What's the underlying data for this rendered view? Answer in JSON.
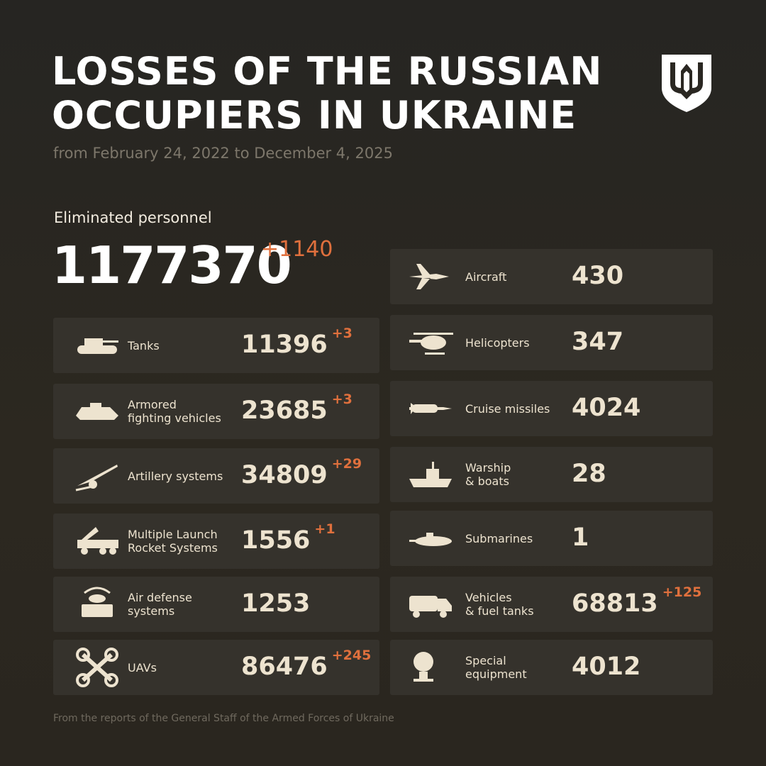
{
  "header": {
    "title_lines": [
      "LOSSES OF THE RUSSIAN",
      "OCCUPIERS IN UKRAINE"
    ],
    "subtitle": "from February 24, 2022 to December 4, 2025"
  },
  "personnel": {
    "label": "Eliminated personnel",
    "value": "1177370",
    "delta": "+1140"
  },
  "left_cards": [
    {
      "label": "Tanks",
      "value": "11396",
      "delta": "+3"
    },
    {
      "label": "Armored\nfighting vehicles",
      "value": "23685",
      "delta": "+3"
    },
    {
      "label": "Artillery systems",
      "value": "34809",
      "delta": "+29"
    },
    {
      "label": "Multiple Launch\nRocket Systems",
      "value": "1556",
      "delta": "+1"
    },
    {
      "label": "Air defense\nsystems",
      "value": "1253"
    },
    {
      "label": "UAVs",
      "value": "86476",
      "delta": "+245"
    }
  ],
  "right_cards": [
    {
      "label": "Aircraft",
      "value": "430"
    },
    {
      "label": "Helicopters",
      "value": "347"
    },
    {
      "label": "Cruise missiles",
      "value": "4024"
    },
    {
      "label": "Warship\n& boats",
      "value": "28"
    },
    {
      "label": "Submarines",
      "value": "1"
    },
    {
      "label": "Vehicles\n& fuel tanks",
      "value": "68813",
      "delta": "+125"
    },
    {
      "label": "Special\nequipment",
      "value": "4012"
    }
  ],
  "footer": "From the reports of the General Staff of the Armed Forces of Ukraine"
}
